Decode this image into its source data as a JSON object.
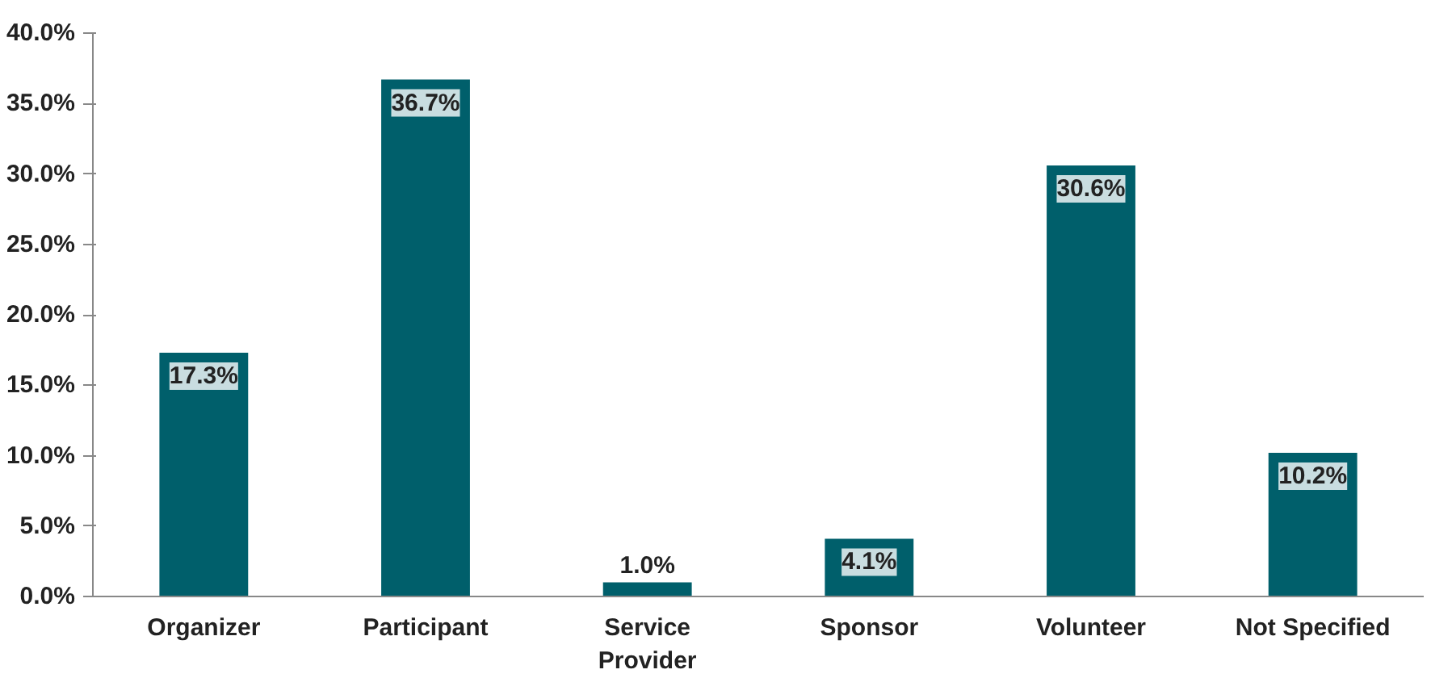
{
  "chart_data": {
    "type": "bar",
    "categories": [
      "Organizer",
      "Participant",
      "Service Provider",
      "Sponsor",
      "Volunteer",
      "Not Specified"
    ],
    "values": [
      17.3,
      36.7,
      1.0,
      4.1,
      30.6,
      10.2
    ],
    "color": "#005f6b",
    "data_labels": true,
    "value_labels": [
      "17.3%",
      "36.7%",
      "1.0%",
      "4.1%",
      "30.6%",
      "10.2%"
    ],
    "ylim": [
      0,
      40
    ],
    "yticks": [
      {
        "value": 0,
        "label": "0.0%"
      },
      {
        "value": 5,
        "label": "5.0%"
      },
      {
        "value": 10,
        "label": "10.0%"
      },
      {
        "value": 15,
        "label": "15.0%"
      },
      {
        "value": 20,
        "label": "20.0%"
      },
      {
        "value": 25,
        "label": "25.0%"
      },
      {
        "value": 30,
        "label": "30.0%"
      },
      {
        "value": 35,
        "label": "35.0%"
      },
      {
        "value": 40,
        "label": "40.0%"
      }
    ],
    "grid": false
  }
}
